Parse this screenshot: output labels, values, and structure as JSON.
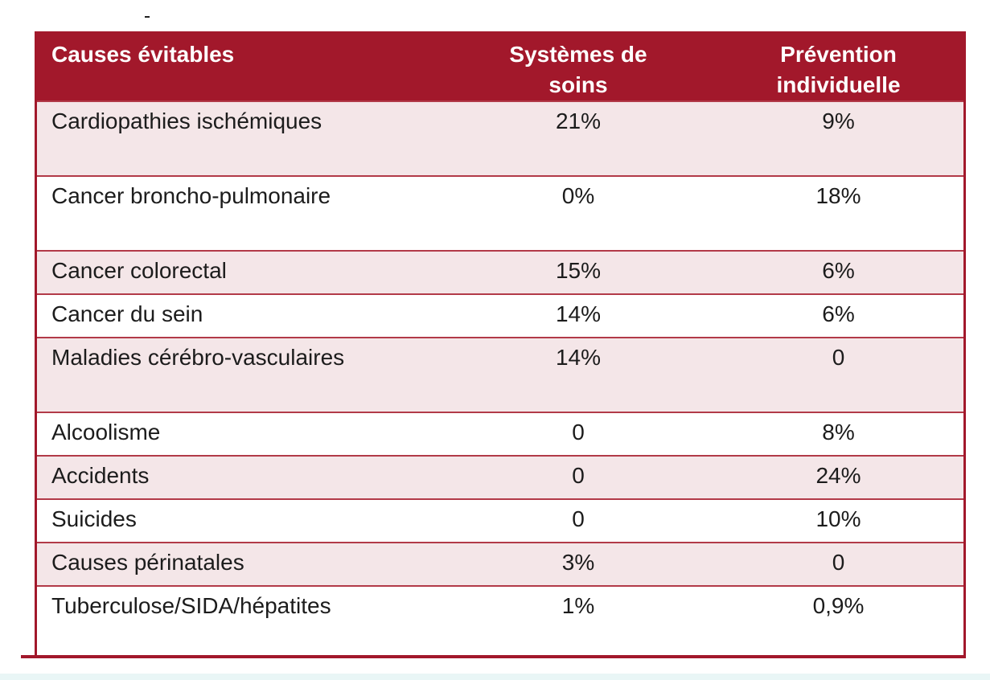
{
  "table": {
    "headers": {
      "cause": "Causes évitables",
      "systems_line1": "Systèmes de",
      "systems_line2": "soins",
      "prevention_line1": "Prévention",
      "prevention_line2": "individuelle"
    },
    "rows": [
      {
        "cause": "Cardiopathies ischémiques",
        "systems": "21%",
        "prevention": "9%"
      },
      {
        "cause": "Cancer broncho-pulmonaire",
        "systems": "0%",
        "prevention": "18%"
      },
      {
        "cause": "Cancer colorectal",
        "systems": "15%",
        "prevention": "6%"
      },
      {
        "cause": "Cancer du sein",
        "systems": "14%",
        "prevention": "6%"
      },
      {
        "cause": "Maladies cérébro-vasculaires",
        "systems": "14%",
        "prevention": "0"
      },
      {
        "cause": "Alcoolisme",
        "systems": "0",
        "prevention": "8%"
      },
      {
        "cause": "Accidents",
        "systems": "0",
        "prevention": "24%"
      },
      {
        "cause": "Suicides",
        "systems": "0",
        "prevention": "10%"
      },
      {
        "cause": "Causes périnatales",
        "systems": "3%",
        "prevention": "0"
      },
      {
        "cause": "Tuberculose/SIDA/hépatites",
        "systems": "1%",
        "prevention": "0,9%"
      }
    ]
  },
  "colors": {
    "header_bg": "#a2182b",
    "alt_row_bg": "#f4e6e8",
    "border": "#b23a48"
  }
}
